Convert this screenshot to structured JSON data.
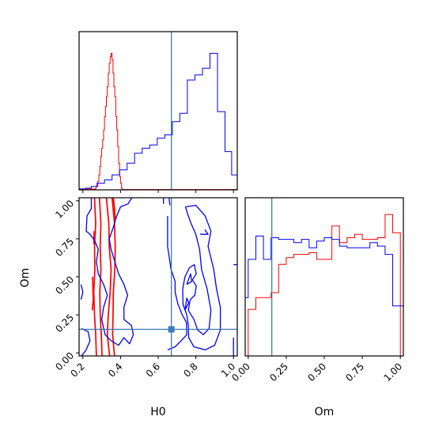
{
  "colors": {
    "series_a": "#ff0000",
    "series_b": "#0000ff",
    "truth": "#3d7ab8",
    "axes": "#000000"
  },
  "chart_data": {
    "type": "corner",
    "parameters": [
      "H0",
      "Om"
    ],
    "truth": {
      "H0": 0.67,
      "Om": 0.155
    },
    "axes": {
      "H0": {
        "label": "H0",
        "lim": [
          0.18,
          1.02
        ],
        "ticks": [
          0.2,
          0.4,
          0.6,
          0.8,
          1.0
        ],
        "tick_labels": [
          "0.2",
          "0.4",
          "0.6",
          "0.8",
          "1.0"
        ]
      },
      "Om": {
        "label": "Om",
        "lim": [
          -0.02,
          1.02
        ],
        "ticks": [
          0.0,
          0.25,
          0.5,
          0.75,
          1.0
        ],
        "tick_labels": [
          "0.00",
          "0.25",
          "0.50",
          "0.75",
          "1.00"
        ]
      }
    },
    "panels": [
      {
        "type": "histogram",
        "x": "H0",
        "xlim": [
          0.18,
          1.02
        ],
        "ylim": [
          0,
          0.95
        ],
        "show_tick_labels": false,
        "series": [
          {
            "color": "red",
            "edges": [
              0.18,
              0.27,
              0.28,
              0.285,
              0.29,
              0.295,
              0.3,
              0.305,
              0.31,
              0.315,
              0.32,
              0.325,
              0.33,
              0.335,
              0.34,
              0.345,
              0.35,
              0.355,
              0.36,
              0.365,
              0.37,
              0.375,
              0.38,
              0.385,
              0.39,
              0.395,
              0.4,
              0.405,
              0.41,
              1.02
            ],
            "values": [
              0.005,
              0.02,
              0.05,
              0.09,
              0.14,
              0.2,
              0.25,
              0.3,
              0.36,
              0.44,
              0.5,
              0.56,
              0.62,
              0.7,
              0.76,
              0.8,
              0.82,
              0.78,
              0.7,
              0.62,
              0.56,
              0.44,
              0.36,
              0.26,
              0.16,
              0.08,
              0.04,
              0.01,
              0.002
            ]
          },
          {
            "color": "blue",
            "edges": [
              0.18,
              0.215,
              0.245,
              0.275,
              0.315,
              0.355,
              0.395,
              0.435,
              0.475,
              0.515,
              0.555,
              0.595,
              0.635,
              0.675,
              0.715,
              0.755,
              0.795,
              0.835,
              0.875,
              0.915,
              0.955,
              0.99,
              1.02
            ],
            "values": [
              0.005,
              0.01,
              0.02,
              0.04,
              0.06,
              0.09,
              0.12,
              0.16,
              0.22,
              0.25,
              0.27,
              0.31,
              0.33,
              0.41,
              0.46,
              0.66,
              0.69,
              0.73,
              0.82,
              0.47,
              0.23,
              0.09
            ]
          }
        ]
      },
      {
        "type": "contour",
        "x": "H0",
        "y": "Om",
        "series": [
          {
            "color": "red",
            "levels": [
              [
                [
                  0.262,
                  1.02
                ],
                [
                  0.268,
                  0.85
                ],
                [
                  0.262,
                  0.7
                ],
                [
                  0.264,
                  0.55
                ],
                [
                  0.258,
                  0.4
                ],
                [
                  0.262,
                  0.25
                ],
                [
                  0.268,
                  0.12
                ],
                [
                  0.272,
                  -0.02
                ]
              ],
              [
                [
                  0.325,
                  1.02
                ],
                [
                  0.338,
                  0.85
                ],
                [
                  0.34,
                  0.7
                ],
                [
                  0.35,
                  0.55
                ],
                [
                  0.345,
                  0.4
                ],
                [
                  0.335,
                  0.25
                ],
                [
                  0.33,
                  0.12
                ],
                [
                  0.342,
                  -0.02
                ]
              ],
              [
                [
                  0.288,
                  1.02
                ],
                [
                  0.296,
                  0.85
                ],
                [
                  0.292,
                  0.7
                ],
                [
                  0.296,
                  0.55
                ],
                [
                  0.29,
                  0.4
                ],
                [
                  0.292,
                  0.25
                ],
                [
                  0.298,
                  0.12
                ],
                [
                  0.302,
                  -0.02
                ]
              ],
              [
                [
                  0.355,
                  1.02
                ],
                [
                  0.368,
                  0.85
                ],
                [
                  0.372,
                  0.7
                ],
                [
                  0.37,
                  0.55
                ],
                [
                  0.362,
                  0.4
                ],
                [
                  0.36,
                  0.25
                ],
                [
                  0.358,
                  0.12
                ],
                [
                  0.368,
                  -0.02
                ]
              ],
              [
                [
                  0.362,
                  1.02
                ],
                [
                  0.368,
                  0.95
                ],
                [
                  0.372,
                  0.88
                ]
              ],
              [
                [
                  0.26,
                  0.8
                ],
                [
                  0.258,
                  0.72
                ],
                [
                  0.266,
                  0.78
                ]
              ],
              [
                [
                  0.252,
                  0.5
                ],
                [
                  0.255,
                  0.35
                ],
                [
                  0.25,
                  0.28
                ]
              ]
            ]
          },
          {
            "color": "blue",
            "levels": [
              [
                [
                  0.245,
                  1.02
                ],
                [
                  0.245,
                  0.95
                ],
                [
                  0.222,
                  0.9
                ],
                [
                  0.218,
                  0.8
                ],
                [
                  0.238,
                  0.78
                ],
                [
                  0.262,
                  0.74
                ],
                [
                  0.282,
                  0.68
                ],
                [
                  0.272,
                  0.6
                ],
                [
                  0.282,
                  0.52
                ],
                [
                  0.31,
                  0.45
                ],
                [
                  0.33,
                  0.38
                ],
                [
                  0.31,
                  0.3
                ],
                [
                  0.3,
                  0.22
                ],
                [
                  0.318,
                  0.12
                ],
                [
                  0.35,
                  0.08
                ],
                [
                  0.39,
                  0.05
                ],
                [
                  0.418,
                  0.1
                ],
                [
                  0.448,
                  0.06
                ],
                [
                  0.468,
                  0.12
                ],
                [
                  0.458,
                  0.18
                ],
                [
                  0.418,
                  0.22
                ],
                [
                  0.418,
                  0.3
                ],
                [
                  0.438,
                  0.38
                ],
                [
                  0.418,
                  0.45
                ],
                [
                  0.39,
                  0.52
                ],
                [
                  0.37,
                  0.6
                ],
                [
                  0.35,
                  0.68
                ],
                [
                  0.34,
                  0.75
                ],
                [
                  0.36,
                  0.82
                ],
                [
                  0.38,
                  0.9
                ],
                [
                  0.4,
                  0.96
                ],
                [
                  0.44,
                  0.98
                ],
                [
                  0.46,
                  1.02
                ]
              ],
              [
                [
                  0.19,
                  0.45
                ],
                [
                  0.2,
                  0.4
                ],
                [
                  0.19,
                  0.35
                ]
              ],
              [
                [
                  0.192,
                  0.16
                ],
                [
                  0.228,
                  0.14
                ],
                [
                  0.238,
                  0.08
                ],
                [
                  0.218,
                  0.02
                ],
                [
                  0.192,
                  -0.02
                ]
              ],
              [
                [
                  0.628,
                  1.02
                ],
                [
                  0.628,
                  0.98
                ]
              ],
              [
                [
                  0.658,
                  1.02
                ],
                [
                  0.662,
                  0.97
                ]
              ],
              [
                [
                  0.745,
                  0.96
                ],
                [
                  0.8,
                  0.97
                ],
                [
                  0.85,
                  0.9
                ],
                [
                  0.88,
                  0.8
                ],
                [
                  0.865,
                  0.7
                ],
                [
                  0.895,
                  0.55
                ],
                [
                  0.91,
                  0.42
                ],
                [
                  0.93,
                  0.3
                ],
                [
                  0.93,
                  0.15
                ],
                [
                  0.9,
                  0.05
                ],
                [
                  0.85,
                  0.02
                ],
                [
                  0.79,
                  0.04
                ],
                [
                  0.762,
                  0.1
                ],
                [
                  0.76,
                  0.18
                ],
                [
                  0.752,
                  0.25
                ],
                [
                  0.732,
                  0.32
                ],
                [
                  0.73,
                  0.42
                ],
                [
                  0.742,
                  0.5
                ],
                [
                  0.766,
                  0.56
                ],
                [
                  0.792,
                  0.58
                ],
                [
                  0.802,
                  0.52
                ],
                [
                  0.782,
                  0.48
                ],
                [
                  0.802,
                  0.44
                ],
                [
                  0.795,
                  0.38
                ],
                [
                  0.77,
                  0.35
                ],
                [
                  0.76,
                  0.28
                ],
                [
                  0.79,
                  0.22
                ],
                [
                  0.81,
                  0.15
                ],
                [
                  0.84,
                  0.12
                ],
                [
                  0.87,
                  0.16
                ],
                [
                  0.88,
                  0.28
                ],
                [
                  0.86,
                  0.42
                ],
                [
                  0.83,
                  0.55
                ],
                [
                  0.82,
                  0.68
                ],
                [
                  0.8,
                  0.78
                ],
                [
                  0.775,
                  0.85
                ],
                [
                  0.76,
                  0.9
                ],
                [
                  0.745,
                  0.96
                ]
              ],
              [
                [
                  0.65,
                  0.9
                ],
                [
                  0.65,
                  0.7
                ],
                [
                  0.668,
                  0.55
                ],
                [
                  0.69,
                  0.47
                ],
                [
                  0.69,
                  0.4
                ],
                [
                  0.705,
                  0.32
                ],
                [
                  0.728,
                  0.25
                ],
                [
                  0.75,
                  0.2
                ],
                [
                  0.752,
                  0.12
                ],
                [
                  0.722,
                  0.08
                ],
                [
                  0.69,
                  0.04
                ],
                [
                  0.65,
                  0.02
                ]
              ],
              [
                [
                  0.752,
                  0.45
                ],
                [
                  0.778,
                  0.47
                ],
                [
                  0.772,
                  0.52
                ],
                [
                  0.752,
                  0.45
                ]
              ],
              [
                [
                  0.742,
                  0.28
                ],
                [
                  0.762,
                  0.33
                ],
                [
                  0.752,
                  0.36
                ],
                [
                  0.742,
                  0.28
                ]
              ],
              [
                [
                  0.822,
                  0.78
                ],
                [
                  0.865,
                  0.78
                ],
                [
                  0.848,
                  0.81
                ]
              ],
              [
                [
                  1.0,
                  0.58
                ],
                [
                  1.02,
                  0.58
                ]
              ],
              [
                [
                  1.0,
                  0.1
                ],
                [
                  1.0,
                  -0.02
                ]
              ]
            ]
          }
        ]
      },
      {
        "type": "histogram",
        "x": "Om",
        "xlim": [
          -0.02,
          1.02
        ],
        "ylim": [
          0,
          0.95
        ],
        "series": [
          {
            "color": "red",
            "edges": [
              -0.02,
              0.0,
              0.05,
              0.1,
              0.15,
              0.2,
              0.25,
              0.3,
              0.35,
              0.4,
              0.45,
              0.5,
              0.55,
              0.6,
              0.65,
              0.7,
              0.75,
              0.8,
              0.85,
              0.9,
              0.95,
              1.0,
              1.02
            ],
            "values": [
              0.0,
              0.28,
              0.35,
              0.35,
              0.38,
              0.55,
              0.59,
              0.61,
              0.61,
              0.62,
              0.58,
              0.58,
              0.78,
              0.68,
              0.71,
              0.73,
              0.7,
              0.7,
              0.71,
              0.85,
              0.74,
              0.0
            ]
          },
          {
            "color": "blue",
            "edges": [
              -0.02,
              0.0,
              0.05,
              0.1,
              0.15,
              0.2,
              0.25,
              0.3,
              0.35,
              0.4,
              0.45,
              0.5,
              0.55,
              0.6,
              0.65,
              0.7,
              0.75,
              0.8,
              0.85,
              0.9,
              0.95,
              1.0,
              1.02
            ],
            "values": [
              0.35,
              0.58,
              0.72,
              0.58,
              0.71,
              0.7,
              0.7,
              0.68,
              0.7,
              0.65,
              0.69,
              0.71,
              0.7,
              0.66,
              0.65,
              0.65,
              0.65,
              0.68,
              0.66,
              0.61,
              0.3,
              0.3
            ]
          }
        ]
      }
    ]
  }
}
